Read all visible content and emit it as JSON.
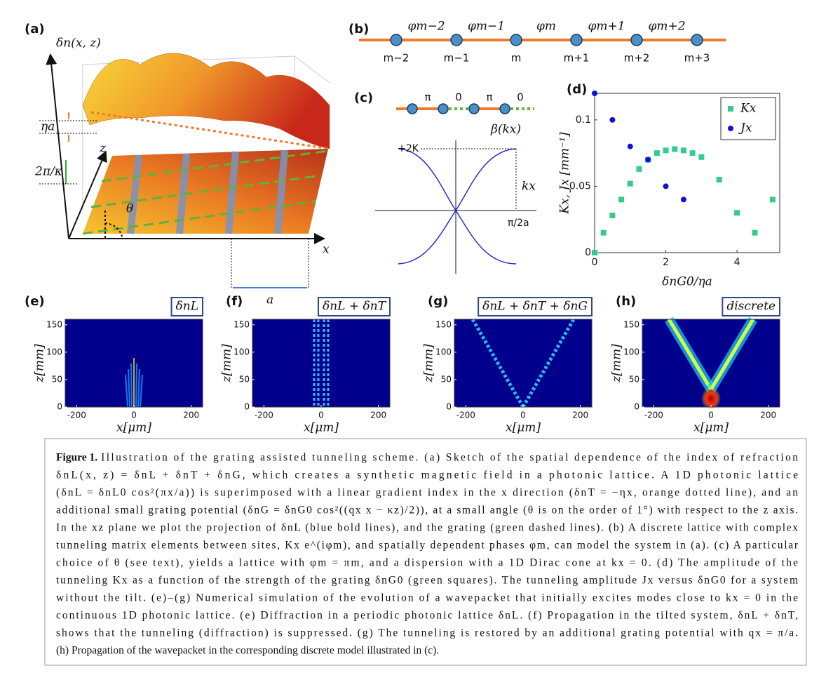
{
  "panels": {
    "a": {
      "label": "(a)",
      "surface": "δn(x, z)",
      "height": "ηa",
      "z": "z",
      "period": "2π/κ",
      "theta": "θ",
      "x": "x",
      "spacing": "a"
    },
    "b": {
      "label": "(b)",
      "phases": [
        "φm−2",
        "φm−1",
        "φm",
        "φm+1",
        "φm+2"
      ],
      "sites": [
        "m−2",
        "m−1",
        "m",
        "m+1",
        "m+2",
        "m+3"
      ]
    },
    "c": {
      "label": "(c)",
      "phases": [
        "π",
        "0",
        "π",
        "0"
      ],
      "band": "β(kx)",
      "top": "+2K",
      "k": "kx",
      "edge": "π/2a"
    },
    "d": {
      "label": "(d)"
    },
    "e": {
      "label": "(e)"
    },
    "f": {
      "label": "(f)"
    },
    "g": {
      "label": "(g)"
    },
    "h": {
      "label": "(h)"
    }
  },
  "chart_data": [
    {
      "type": "scatter",
      "xlabel": "δnG0/ηa",
      "ylabel": "Kx, Jx [mm⁻¹]",
      "xlim": [
        0,
        5.2
      ],
      "ylim": [
        0,
        0.12
      ],
      "xticks": [
        0,
        2,
        4
      ],
      "yticks": [
        0,
        0.05,
        0.1
      ],
      "legend": "upper right",
      "series": [
        {
          "name": "Kx",
          "color": "#33cc88",
          "marker": "square",
          "x": [
            0,
            0.25,
            0.5,
            0.75,
            1,
            1.25,
            1.5,
            1.75,
            2,
            2.25,
            2.5,
            2.75,
            3,
            3.5,
            4,
            4.5,
            5
          ],
          "values": [
            0,
            0.015,
            0.028,
            0.04,
            0.052,
            0.063,
            0.07,
            0.075,
            0.077,
            0.078,
            0.077,
            0.075,
            0.072,
            0.055,
            0.03,
            0.015,
            0.04
          ]
        },
        {
          "name": "Jx",
          "color": "#1010d8",
          "marker": "circle",
          "x": [
            0,
            0.5,
            1,
            1.5,
            2,
            2.5
          ],
          "values": [
            0.12,
            0.1,
            0.08,
            0.07,
            0.05,
            0.04
          ]
        }
      ]
    },
    {
      "type": "heatmap",
      "title": "δnL",
      "xlabel": "x[μm]",
      "ylabel": "z[mm]",
      "xlim": [
        -240,
        240
      ],
      "ylim": [
        0,
        160
      ],
      "xticks": [
        -200,
        0,
        200
      ],
      "yticks": [
        0,
        50,
        100,
        150
      ]
    },
    {
      "type": "heatmap",
      "title": "δnL + δnT",
      "xlabel": "x[μm]",
      "ylabel": "z[mm]",
      "xlim": [
        -240,
        240
      ],
      "ylim": [
        0,
        160
      ],
      "xticks": [
        -200,
        0,
        200
      ],
      "yticks": [
        0,
        50,
        100,
        150
      ]
    },
    {
      "type": "heatmap",
      "title": "δnL + δnT + δnG",
      "xlabel": "x[μm]",
      "ylabel": "z[mm]",
      "xlim": [
        -240,
        240
      ],
      "ylim": [
        0,
        160
      ],
      "xticks": [
        -200,
        0,
        200
      ],
      "yticks": [
        0,
        50,
        100,
        150
      ]
    },
    {
      "type": "heatmap",
      "title": "discrete",
      "xlabel": "x[μm]",
      "ylabel": "z[mm]",
      "xlim": [
        -240,
        240
      ],
      "ylim": [
        0,
        160
      ],
      "xticks": [
        -200,
        0,
        200
      ],
      "yticks": [
        0,
        50,
        100,
        150
      ]
    }
  ],
  "caption": {
    "label": "Figure 1.",
    "lines": [
      "Illustration of the grating assisted tunneling scheme. (a) Sketch of the spatial dependence of the index of refraction",
      "δnL(x, z) = δnL + δnT + δnG, which creates a synthetic magnetic field in a photonic lattice. A 1D photonic lattice",
      "(δnL = δnL0 cos²(πx/a)) is superimposed with a linear gradient index in the x direction (δnT = −ηx, orange dotted line), and an",
      "additional small grating potential (δnG = δnG0 cos²((qx x − κz)/2)), at a small angle (θ is on the order of 1°) with respect to the z axis.",
      "In the xz plane we plot the projection of δnL (blue bold lines), and the grating (green dashed lines). (b) A discrete lattice with complex",
      "tunneling matrix elements between sites, Kx e^(iφm), and spatially dependent phases φm, can model the system in (a). (c) A particular",
      "choice of θ (see text), yields a lattice with φm = πm, and a dispersion with a 1D Dirac cone at kx = 0. (d) The amplitude of the",
      "tunneling Kx as a function of the strength of the grating δnG0 (green squares). The tunneling amplitude Jx versus δnG0 for a system",
      "without the tilt. (e)–(g) Numerical simulation of the evolution of a wavepacket that initially excites modes close to kx = 0 in the",
      "continuous 1D photonic lattice. (e) Diffraction in a periodic photonic lattice δnL. (f) Propagation in the tilted system, δnL + δnT,",
      "shows that the tunneling (diffraction) is suppressed. (g) The tunneling is restored by an additional grating potential with qx = π/a.",
      "(h) Propagation of the wavepacket in the corresponding discrete model illustrated in (c)."
    ]
  }
}
